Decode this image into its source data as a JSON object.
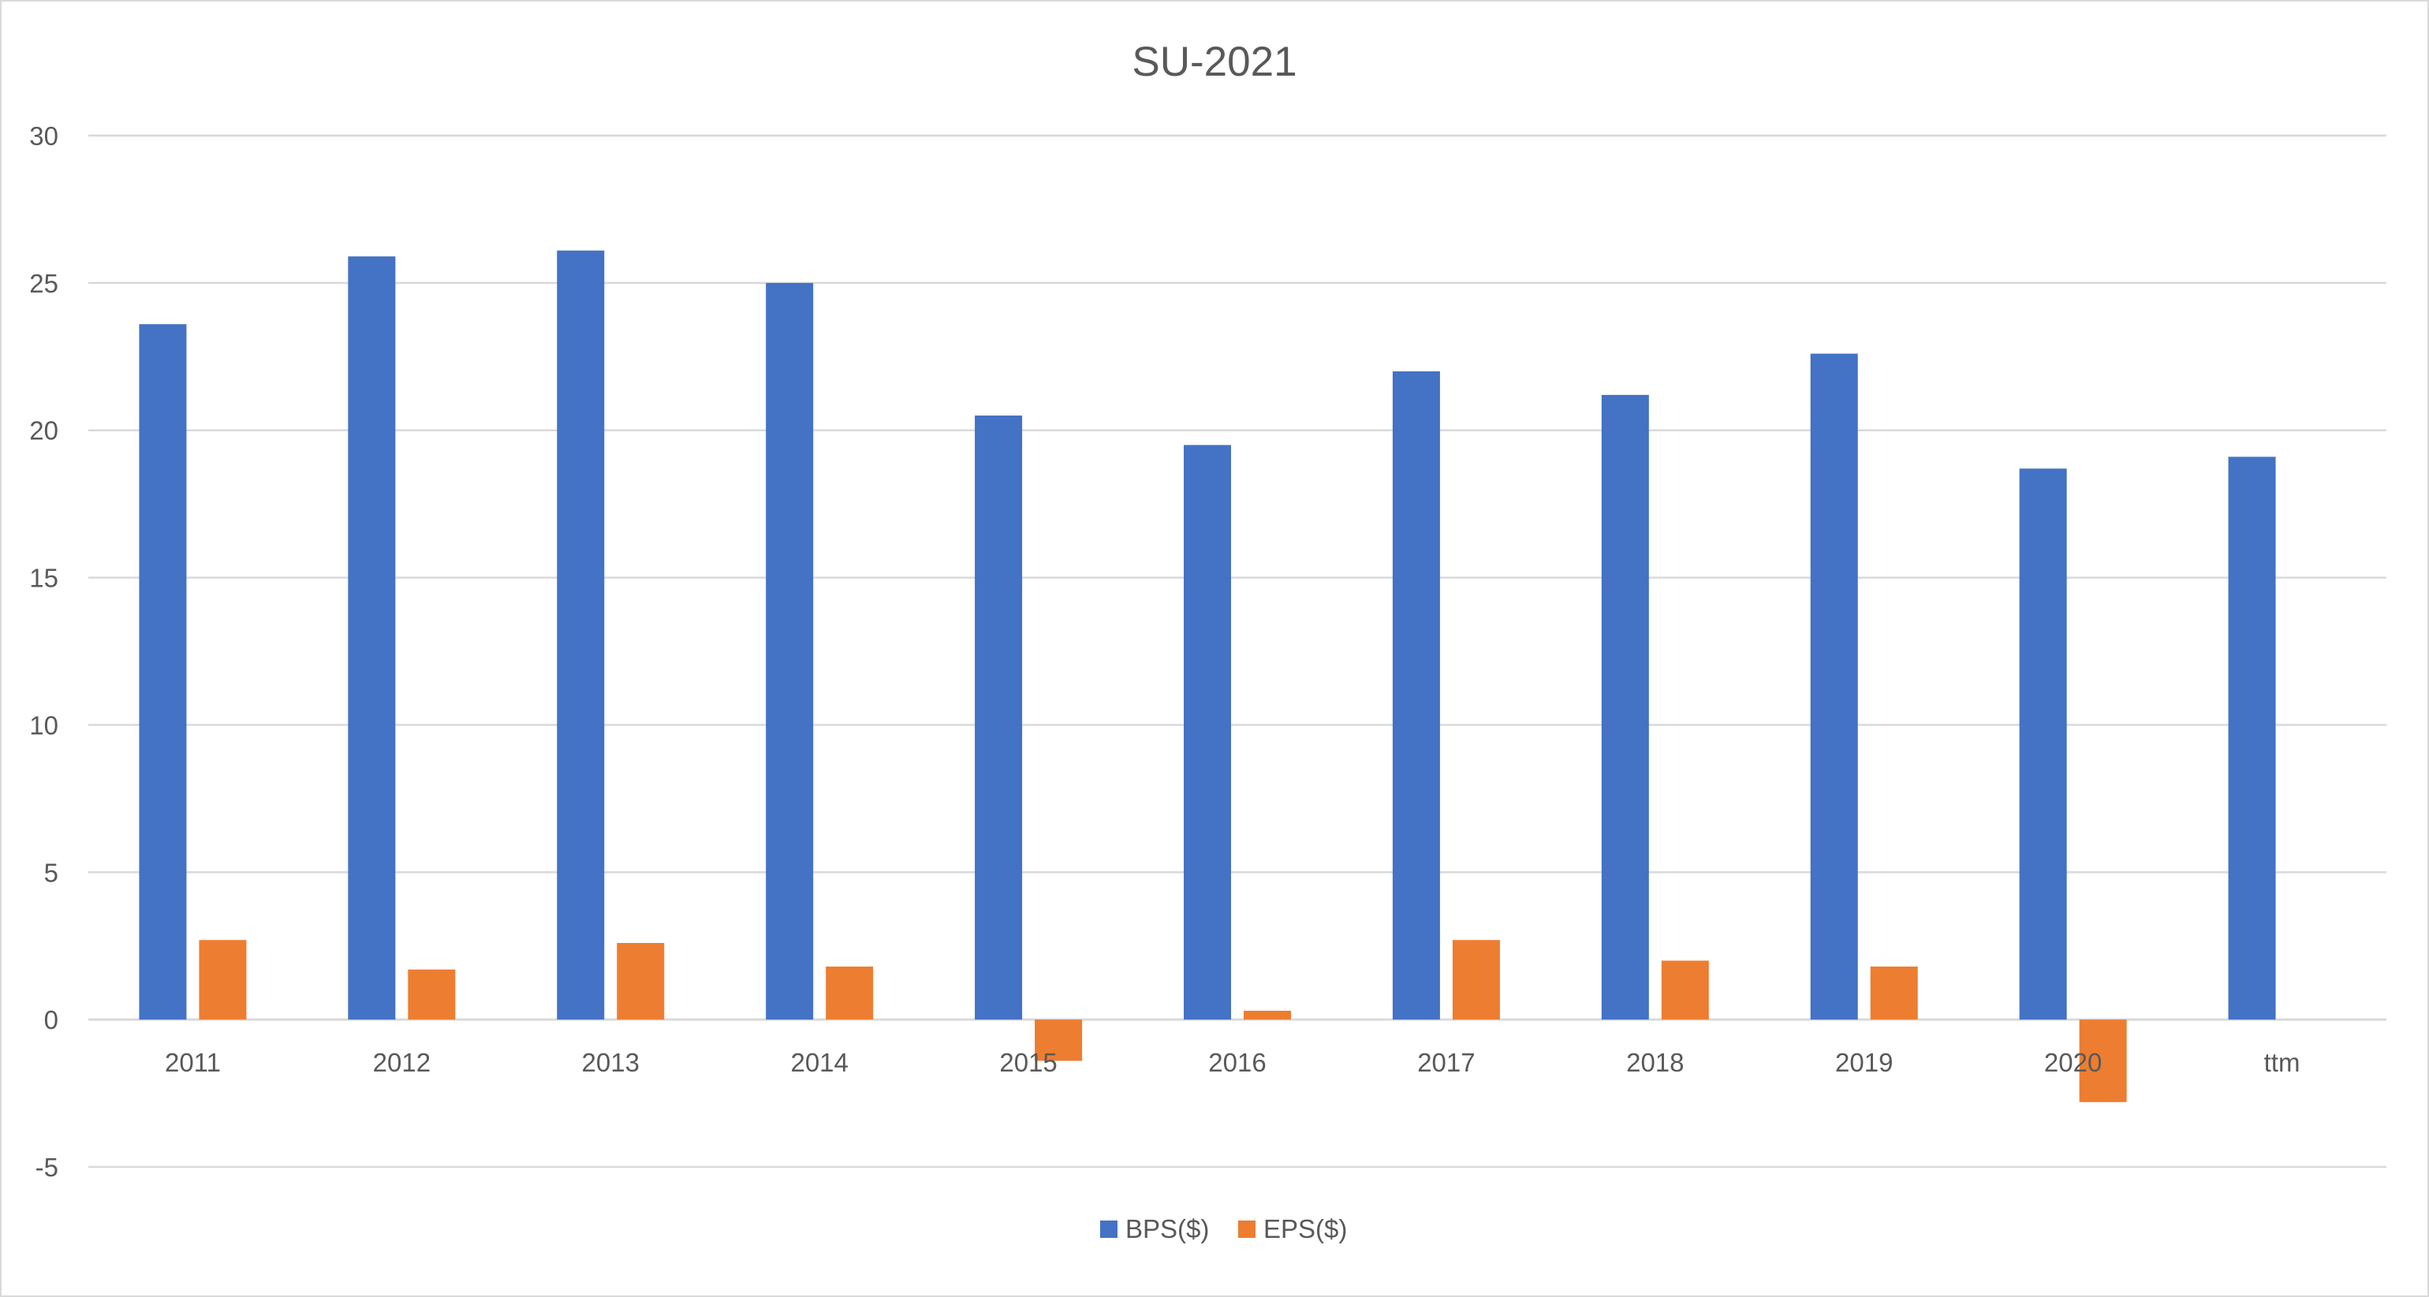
{
  "chart_data": {
    "type": "bar",
    "title": "SU-2021",
    "categories": [
      "2011",
      "2012",
      "2013",
      "2014",
      "2015",
      "2016",
      "2017",
      "2018",
      "2019",
      "2020",
      "ttm"
    ],
    "series": [
      {
        "name": "BPS($)",
        "color": "#4472c4",
        "values": [
          23.6,
          25.9,
          26.1,
          25.0,
          20.5,
          19.5,
          22.0,
          21.2,
          22.6,
          18.7,
          19.1
        ]
      },
      {
        "name": "EPS($)",
        "color": "#ed7d31",
        "values": [
          2.7,
          1.7,
          2.6,
          1.8,
          -1.4,
          0.3,
          2.7,
          2.0,
          1.8,
          -2.8,
          0.0
        ]
      }
    ],
    "ylim": [
      -5,
      30
    ],
    "yticks": [
      -5,
      0,
      5,
      10,
      15,
      20,
      25,
      30
    ],
    "grid": true,
    "legend_position": "bottom"
  }
}
